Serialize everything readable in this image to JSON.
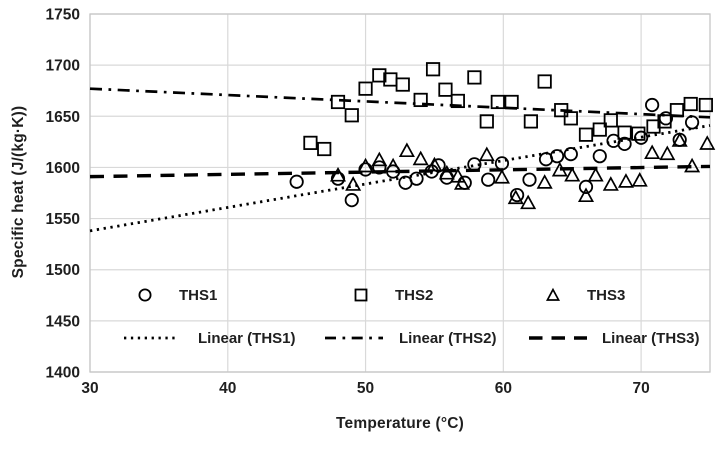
{
  "chart_data": {
    "type": "scatter",
    "title": "",
    "xlabel": "Temperature (°C)",
    "ylabel": "Specific heat (J/(kg·K))",
    "xlim": [
      30,
      75
    ],
    "ylim": [
      1400,
      1750
    ],
    "x_ticks": [
      30,
      40,
      50,
      60,
      70
    ],
    "y_ticks": [
      1400,
      1450,
      1500,
      1550,
      1600,
      1650,
      1700,
      1750
    ],
    "grid": true,
    "legend_position": "bottom-inside",
    "series": [
      {
        "name": "THS1",
        "marker": "circle",
        "points": [
          [
            45,
            1586
          ],
          [
            48,
            1589
          ],
          [
            49,
            1568
          ],
          [
            50,
            1598
          ],
          [
            51,
            1600
          ],
          [
            52,
            1596
          ],
          [
            52.9,
            1585
          ],
          [
            53.7,
            1589
          ],
          [
            54.8,
            1596
          ],
          [
            55.3,
            1602
          ],
          [
            55.9,
            1590
          ],
          [
            57.2,
            1585
          ],
          [
            57.9,
            1603
          ],
          [
            58.9,
            1588
          ],
          [
            59.9,
            1604
          ],
          [
            61,
            1573
          ],
          [
            61.9,
            1588
          ],
          [
            63.1,
            1608
          ],
          [
            63.9,
            1611
          ],
          [
            64.9,
            1613
          ],
          [
            66,
            1581
          ],
          [
            67,
            1611
          ],
          [
            68,
            1626
          ],
          [
            68.8,
            1623
          ],
          [
            70,
            1629
          ],
          [
            70.8,
            1661
          ],
          [
            71.8,
            1648
          ],
          [
            72.8,
            1627
          ],
          [
            73.7,
            1644
          ]
        ]
      },
      {
        "name": "THS2",
        "marker": "square",
        "points": [
          [
            46,
            1624
          ],
          [
            47,
            1618
          ],
          [
            48,
            1664
          ],
          [
            49,
            1651
          ],
          [
            50,
            1677
          ],
          [
            51,
            1690
          ],
          [
            51.8,
            1686
          ],
          [
            52.7,
            1681
          ],
          [
            54,
            1666
          ],
          [
            54.9,
            1696
          ],
          [
            55.8,
            1676
          ],
          [
            56.7,
            1665
          ],
          [
            57.9,
            1688
          ],
          [
            58.8,
            1645
          ],
          [
            59.6,
            1664
          ],
          [
            60.6,
            1664
          ],
          [
            62,
            1645
          ],
          [
            63,
            1684
          ],
          [
            64.2,
            1656
          ],
          [
            64.9,
            1648
          ],
          [
            66,
            1632
          ],
          [
            67,
            1637
          ],
          [
            67.8,
            1646
          ],
          [
            68.8,
            1634
          ],
          [
            69.8,
            1633
          ],
          [
            70.9,
            1640
          ],
          [
            71.7,
            1645
          ],
          [
            72.6,
            1656
          ],
          [
            73.6,
            1662
          ],
          [
            74.7,
            1661
          ]
        ]
      },
      {
        "name": "THS3",
        "marker": "triangle",
        "points": [
          [
            48,
            1592
          ],
          [
            49.1,
            1583
          ],
          [
            50,
            1601
          ],
          [
            51,
            1607
          ],
          [
            52,
            1601
          ],
          [
            53,
            1616
          ],
          [
            54,
            1608
          ],
          [
            55,
            1602
          ],
          [
            55.9,
            1594
          ],
          [
            56.7,
            1591
          ],
          [
            57,
            1584
          ],
          [
            58.8,
            1612
          ],
          [
            59.9,
            1590
          ],
          [
            60.9,
            1570
          ],
          [
            61.8,
            1565
          ],
          [
            63,
            1585
          ],
          [
            64.1,
            1597
          ],
          [
            65,
            1592
          ],
          [
            66,
            1572
          ],
          [
            66.7,
            1592
          ],
          [
            67.8,
            1583
          ],
          [
            68.9,
            1586
          ],
          [
            69.9,
            1587
          ],
          [
            70.8,
            1614
          ],
          [
            71.9,
            1613
          ],
          [
            72.8,
            1626
          ],
          [
            73.7,
            1601
          ],
          [
            74.8,
            1623
          ]
        ]
      }
    ],
    "trendlines": [
      {
        "name": "Linear (THS1)",
        "style": "dotted",
        "points": [
          [
            30,
            1538
          ],
          [
            75,
            1641
          ]
        ]
      },
      {
        "name": "Linear (THS2)",
        "style": "dashdot",
        "points": [
          [
            30,
            1677
          ],
          [
            75,
            1649
          ]
        ]
      },
      {
        "name": "Linear (THS3)",
        "style": "dashed",
        "points": [
          [
            30,
            1591
          ],
          [
            75,
            1601
          ]
        ]
      }
    ]
  },
  "colors": {
    "marker": "#000000",
    "line": "#000000",
    "grid": "#d9d9d9",
    "border": "#c6c6c6",
    "text": "#1f1f1f",
    "background": "#ffffff"
  }
}
